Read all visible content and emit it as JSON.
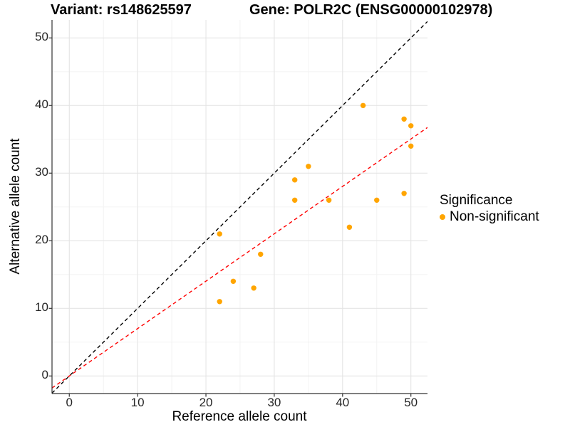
{
  "header": {
    "variant_title": "Variant: rs148625597",
    "gene_title": "Gene: POLR2C (ENSG00000102978)"
  },
  "legend": {
    "title": "Significance",
    "items": [
      {
        "label": "Non-significant",
        "marker": "circle-icon",
        "color": "#FFA500"
      }
    ]
  },
  "chart_data": {
    "type": "scatter",
    "title_left": "Variant: rs148625597",
    "title_right": "Gene: POLR2C (ENSG00000102978)",
    "xlabel": "Reference allele count",
    "ylabel": "Alternative allele count",
    "xlim": [
      -2.53,
      52.43
    ],
    "ylim": [
      -2.6,
      52.66
    ],
    "x_ticks": [
      0,
      10,
      20,
      30,
      40,
      50
    ],
    "y_ticks": [
      0,
      10,
      20,
      30,
      40,
      50
    ],
    "x_minor_ticks": [
      5,
      15,
      25,
      35,
      45
    ],
    "y_minor_ticks": [
      5,
      15,
      25,
      35,
      45
    ],
    "grid": true,
    "legend_position": "right",
    "series": [
      {
        "name": "Non-significant",
        "color": "#FFA500",
        "marker_radius": 3.7,
        "points": [
          [
            22,
            11
          ],
          [
            22,
            21
          ],
          [
            24,
            14
          ],
          [
            27,
            13
          ],
          [
            28,
            18
          ],
          [
            33,
            26
          ],
          [
            33,
            29
          ],
          [
            35,
            31
          ],
          [
            38,
            26
          ],
          [
            41,
            22
          ],
          [
            43,
            40
          ],
          [
            45,
            26
          ],
          [
            49,
            27
          ],
          [
            49,
            38
          ],
          [
            50,
            34
          ],
          [
            50,
            37
          ]
        ]
      }
    ],
    "reference_lines": [
      {
        "name": "identity-line",
        "slope": 1,
        "intercept": 0,
        "color": "#000000",
        "style": "dashed"
      },
      {
        "name": "allele-ratio-line",
        "slope": 0.701,
        "intercept": 0,
        "color": "#FF0000",
        "style": "dashed"
      }
    ]
  },
  "style": {
    "background": "#FFFFFF",
    "point_color": "#FFA500",
    "identity_line_color": "#000000",
    "ratio_line_color": "#FF0000",
    "grid_major_color": "#E4E4E4",
    "grid_minor_color": "#F2F2F2",
    "axis_line_color": "#333333",
    "tick_label_color": "#262626",
    "text_color": "#000000"
  }
}
